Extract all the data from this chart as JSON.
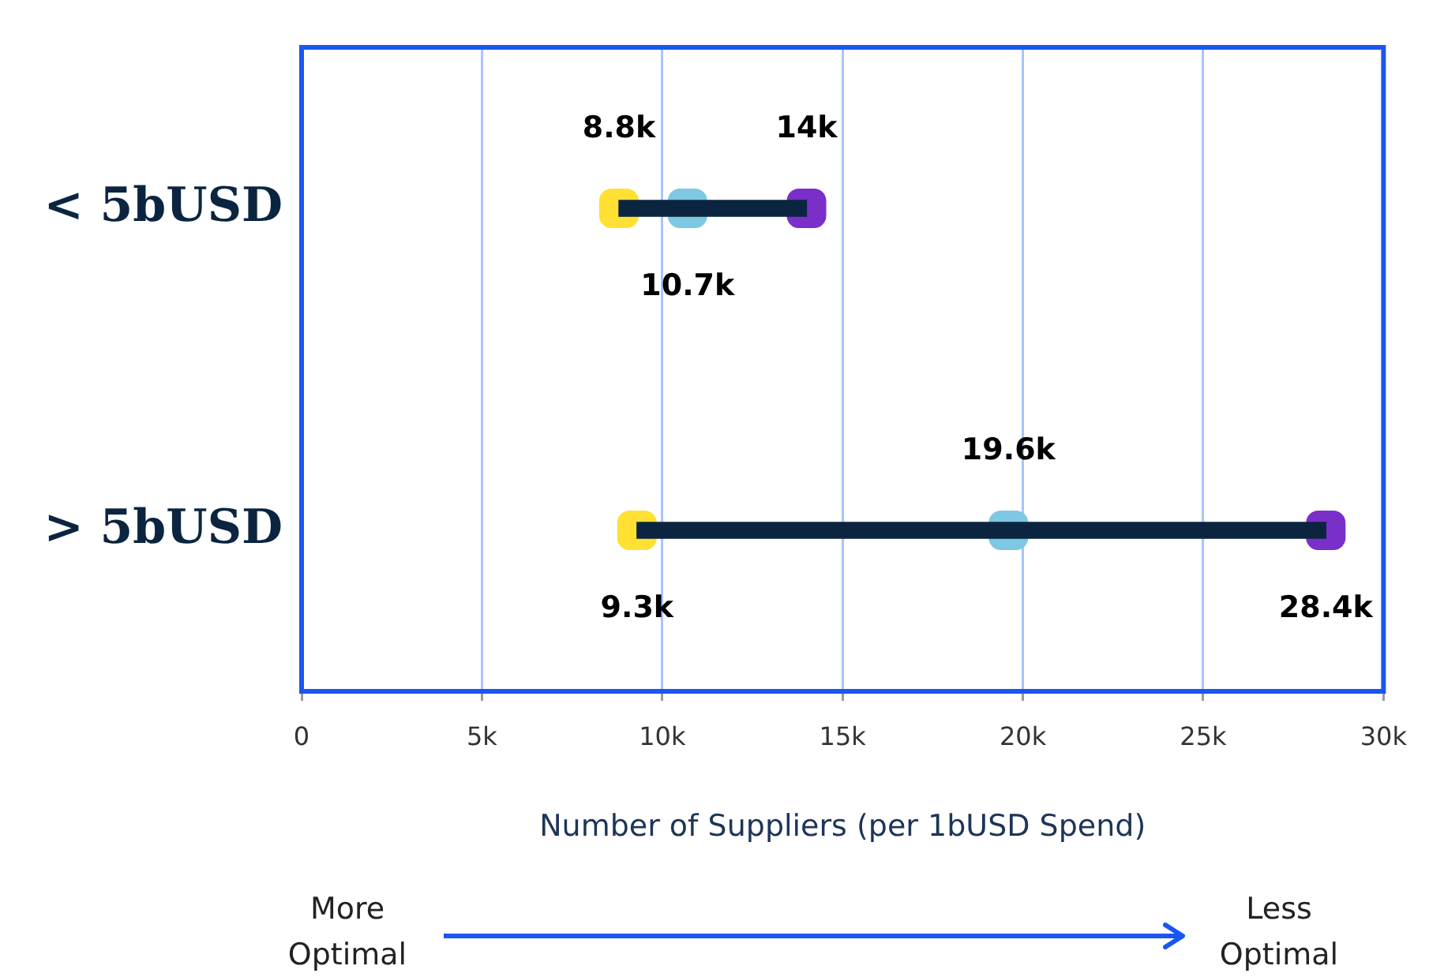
{
  "chart_data": {
    "type": "bar",
    "orientation": "horizontal",
    "categories": [
      "< 5bUSD",
      "> 5bUSD"
    ],
    "xlabel": "Number of Suppliers (per 1bUSD Spend)",
    "xlim": [
      0,
      30000
    ],
    "xticks": [
      0,
      {
        "value": 5000,
        "label": "5k"
      },
      {
        "value": 10000,
        "label": "10k"
      },
      {
        "value": 15000,
        "label": "15k"
      },
      {
        "value": 20000,
        "label": "20k"
      },
      {
        "value": 25000,
        "label": "25k"
      },
      {
        "value": 30000,
        "label": "30k"
      }
    ],
    "grid": "x",
    "marker": "square",
    "series": [
      {
        "color": "#0b2540",
        "base": [
          8800,
          9300
        ],
        "values": [
          5200,
          19100
        ]
      },
      {
        "type": "scatter",
        "color": "#ffe033",
        "values": [
          8800,
          9300
        ],
        "value_labels": [
          "8.8k",
          "9.3k"
        ]
      },
      {
        "type": "scatter",
        "color": "#7ec8e3",
        "values": [
          10700,
          19600
        ],
        "value_labels": [
          "10.7k",
          "19.6k"
        ]
      },
      {
        "type": "scatter",
        "color": "#7b2fc9",
        "values": [
          14000,
          28400
        ],
        "value_labels": [
          "14k",
          "28.4k"
        ]
      }
    ],
    "annotations": [
      "More Optimal",
      "Less Optimal"
    ]
  }
}
